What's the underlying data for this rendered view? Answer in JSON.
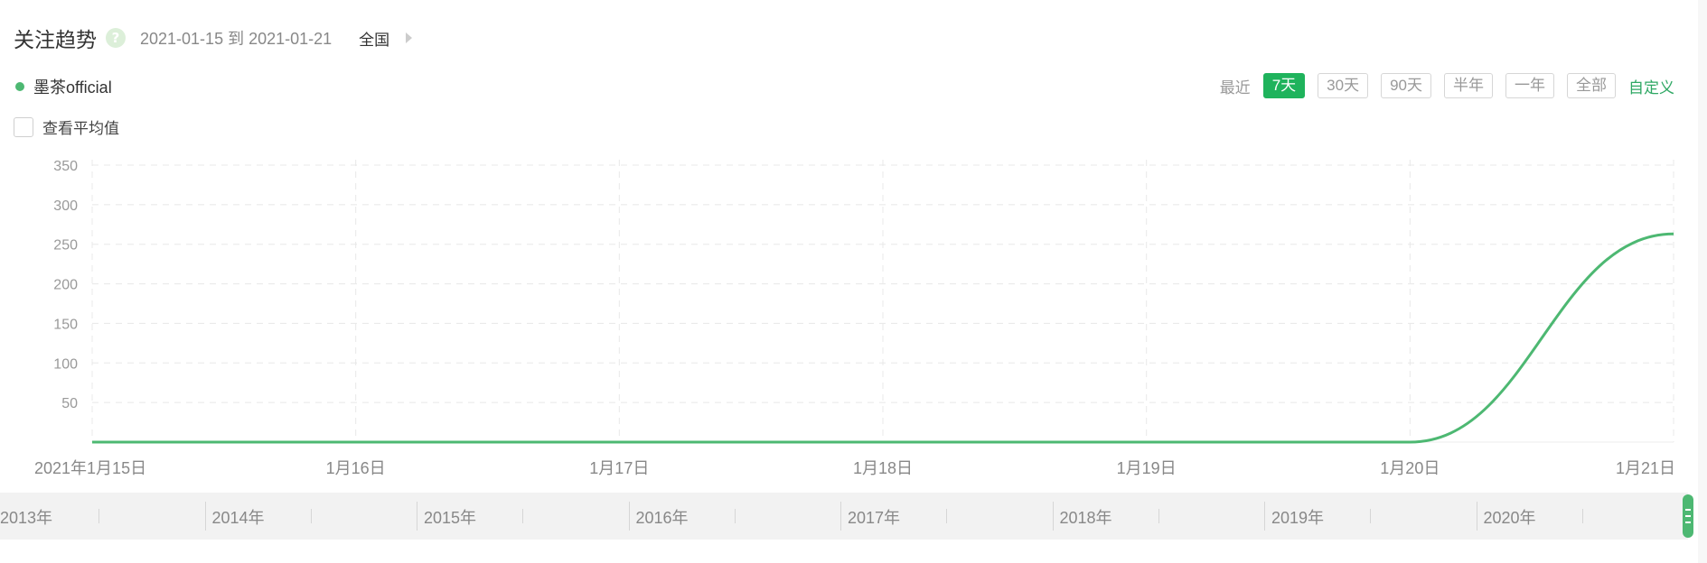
{
  "header": {
    "title": "关注趋势",
    "help_icon": "question-mark",
    "date_range": "2021-01-15 到 2021-01-21",
    "region": "全国"
  },
  "legend": {
    "label": "墨茶official",
    "color": "#4db872"
  },
  "average_toggle": {
    "label": "查看平均值",
    "checked": false
  },
  "range_selector": {
    "prefix": "最近",
    "options": [
      "7天",
      "30天",
      "90天",
      "半年",
      "一年",
      "全部"
    ],
    "selected": "7天",
    "custom_label": "自定义",
    "accent_color": "#1fb35c"
  },
  "timeline": {
    "years": [
      "2013年",
      "2014年",
      "2015年",
      "2016年",
      "2017年",
      "2018年",
      "2019年",
      "2020年"
    ]
  },
  "chart_data": {
    "type": "line",
    "title": "",
    "xlabel": "",
    "ylabel": "",
    "x_labels": [
      "2021年1月15日",
      "1月16日",
      "1月17日",
      "1月18日",
      "1月19日",
      "1月20日",
      "1月21日"
    ],
    "y_ticks": [
      50,
      100,
      150,
      200,
      250,
      300,
      350
    ],
    "ylim": [
      0,
      350
    ],
    "grid": true,
    "series": [
      {
        "name": "墨茶official",
        "color": "#4db872",
        "values": [
          0,
          0,
          0,
          0,
          0,
          0,
          263
        ]
      }
    ]
  }
}
